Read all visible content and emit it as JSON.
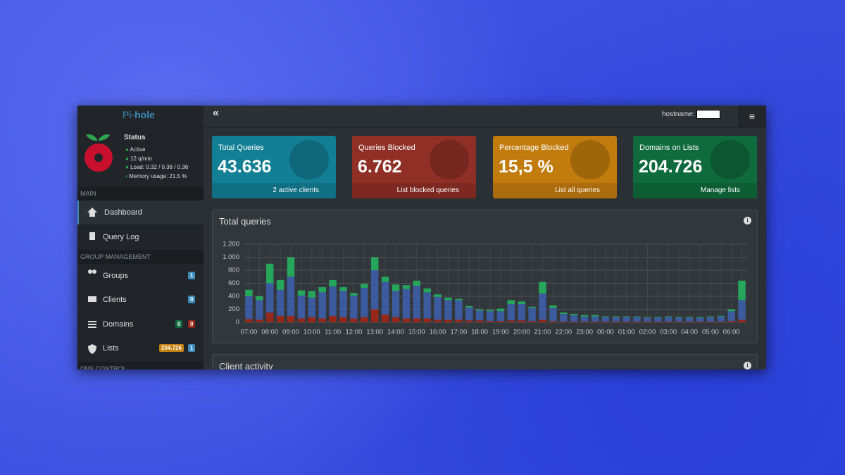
{
  "brand": {
    "prefix": "Pi-",
    "suffix": "hole"
  },
  "status": {
    "title": "Status",
    "items": [
      "Active",
      "12 q/min",
      "Load: 0.32 / 0.36 / 0.36",
      "Memory usage: 21.5 %"
    ]
  },
  "topbar": {
    "hostname_label": "hostname:"
  },
  "nav": {
    "main_header": "MAIN",
    "dashboard": "Dashboard",
    "query_log": "Query Log",
    "group_header": "GROUP MANAGEMENT",
    "groups": {
      "label": "Groups",
      "badges": [
        "1"
      ]
    },
    "clients": {
      "label": "Clients",
      "badges": [
        "0"
      ]
    },
    "domains": {
      "label": "Domains",
      "badges": [
        "0",
        "0"
      ]
    },
    "lists": {
      "label": "Lists",
      "badges": [
        "204.726",
        "1"
      ]
    },
    "dns_header": "DNS CONTROL"
  },
  "cards": [
    {
      "title": "Total Queries",
      "value": "43.636",
      "link": "2 active clients"
    },
    {
      "title": "Queries Blocked",
      "value": "6.762",
      "link": "List blocked queries"
    },
    {
      "title": "Percentage Blocked",
      "value": "15,5 %",
      "link": "List all queries"
    },
    {
      "title": "Domains on Lists",
      "value": "204.726",
      "link": "Manage lists"
    }
  ],
  "panels": {
    "client_activity": "Client activity"
  },
  "chart_data": {
    "type": "bar",
    "title": "Total queries",
    "stacked": true,
    "grid": true,
    "categories": [
      "07:00",
      null,
      "08:00",
      null,
      "09:00",
      null,
      "10:00",
      null,
      "11:00",
      null,
      "12:00",
      null,
      "13:00",
      null,
      "14:00",
      null,
      "15:00",
      null,
      "16:00",
      null,
      "17:00",
      null,
      "18:00",
      null,
      "19:00",
      null,
      "20:00",
      null,
      "21:00",
      null,
      "22:00",
      null,
      "23:00",
      null,
      "00:00",
      null,
      "01:00",
      null,
      "02:00",
      null,
      "03:00",
      null,
      "04:00",
      null,
      "05:00",
      null,
      "06:00",
      null
    ],
    "series": [
      {
        "color": "#96281b",
        "values": [
          50,
          40,
          150,
          100,
          100,
          60,
          80,
          60,
          100,
          80,
          60,
          80,
          200,
          120,
          80,
          60,
          60,
          60,
          40,
          40,
          40,
          30,
          30,
          20,
          20,
          30,
          30,
          20,
          40,
          20,
          10,
          10,
          10,
          10,
          10,
          10,
          10,
          10,
          10,
          10,
          10,
          10,
          10,
          10,
          10,
          10,
          20,
          40
        ]
      },
      {
        "color": "#3c5a9e",
        "values": [
          350,
          300,
          450,
          400,
          600,
          350,
          300,
          400,
          450,
          400,
          350,
          450,
          600,
          500,
          400,
          450,
          500,
          400,
          350,
          300,
          300,
          200,
          150,
          150,
          150,
          250,
          250,
          200,
          400,
          200,
          120,
          100,
          80,
          80,
          70,
          70,
          70,
          70,
          60,
          60,
          70,
          60,
          60,
          60,
          70,
          80,
          150,
          300
        ]
      },
      {
        "color": "#26a65b",
        "values": [
          100,
          60,
          300,
          150,
          300,
          80,
          100,
          80,
          100,
          60,
          40,
          60,
          200,
          80,
          100,
          60,
          80,
          60,
          40,
          40,
          20,
          20,
          20,
          20,
          40,
          60,
          40,
          20,
          180,
          40,
          20,
          20,
          20,
          20,
          10,
          10,
          10,
          10,
          10,
          10,
          10,
          10,
          10,
          10,
          10,
          10,
          30,
          300
        ]
      }
    ],
    "ylim": [
      0,
      1200
    ],
    "yticks": [
      0,
      200,
      400,
      600,
      800,
      {
        "value": 1000,
        "label": "1.000"
      },
      {
        "value": 1200,
        "label": "1.200"
      }
    ]
  }
}
